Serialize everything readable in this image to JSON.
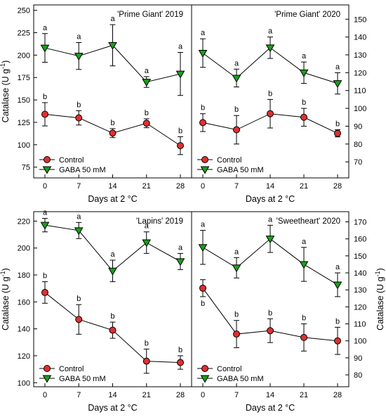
{
  "figure": {
    "xlabel": "Days at 2 °C",
    "ylabel": "Catalase (U g",
    "ylabel_sup": "-1",
    "ylabel_close": ")",
    "legend_location": "lower-left"
  },
  "chart_data": [
    {
      "type": "line",
      "title": "'Prime Giant' 2019",
      "x": [
        0,
        7,
        14,
        21,
        28
      ],
      "xlabel": "Days at 2 °C",
      "ylabel": "Catalase (U g-1)",
      "ylim": [
        63,
        256
      ],
      "yticks": [
        75,
        100,
        125,
        150,
        175,
        200,
        225,
        250
      ],
      "y_axis_side": "left",
      "series": [
        {
          "name": "Control",
          "marker": "circle",
          "color": "#e03030",
          "values": [
            134,
            130,
            113,
            124,
            99
          ],
          "errors": [
            13,
            8,
            5,
            5,
            10
          ],
          "letters": [
            "b",
            "b",
            "b",
            "b",
            "b"
          ]
        },
        {
          "name": "GABA  50 mM",
          "marker": "triangle-down",
          "color": "#1aa01a",
          "values": [
            208,
            199,
            211,
            170,
            179
          ],
          "errors": [
            16,
            15,
            23,
            6,
            24
          ],
          "letters": [
            "a",
            "a",
            "a",
            "a",
            "a"
          ]
        }
      ]
    },
    {
      "type": "line",
      "title": "'Prime Giant' 2020",
      "x": [
        0,
        7,
        14,
        21,
        28
      ],
      "xlabel": "Days at 2 °C",
      "ylabel": "",
      "ylim": [
        61,
        158
      ],
      "yticks": [
        70,
        80,
        90,
        100,
        110,
        120,
        130,
        140,
        150
      ],
      "y_axis_side": "right",
      "series": [
        {
          "name": "Control",
          "marker": "circle",
          "color": "#e03030",
          "values": [
            92,
            88,
            97,
            95,
            86
          ],
          "errors": [
            5,
            8,
            8,
            5,
            2
          ],
          "letters": [
            "b",
            "b",
            "b",
            "b",
            "b"
          ]
        },
        {
          "name": "GABA  50 mM",
          "marker": "triangle-down",
          "color": "#1aa01a",
          "values": [
            131,
            117,
            134,
            120,
            114
          ],
          "errors": [
            8,
            5,
            6,
            6,
            6
          ],
          "letters": [
            "a",
            "a",
            "a",
            "a",
            "a"
          ]
        }
      ]
    },
    {
      "type": "line",
      "title": "'Lapins' 2019",
      "x": [
        0,
        7,
        14,
        21,
        28
      ],
      "xlabel": "Days at 2 °C",
      "ylabel": "Catalase (U g-1)",
      "ylim": [
        97,
        227
      ],
      "yticks": [
        100,
        120,
        140,
        160,
        180,
        200,
        220
      ],
      "y_axis_side": "left",
      "series": [
        {
          "name": "Control",
          "marker": "circle",
          "color": "#e03030",
          "values": [
            167,
            147,
            139,
            116,
            115
          ],
          "errors": [
            8,
            11,
            6,
            9,
            5
          ],
          "letters": [
            "b",
            "b",
            "b",
            "b",
            "b"
          ]
        },
        {
          "name": "GABA 50 mM",
          "marker": "triangle-down",
          "color": "#1aa01a",
          "values": [
            217,
            213,
            183,
            204,
            190
          ],
          "errors": [
            5,
            6,
            8,
            8,
            6
          ],
          "letters": [
            "a",
            "a",
            "a",
            "a",
            "a"
          ]
        }
      ]
    },
    {
      "type": "line",
      "title": "'Sweetheart' 2020",
      "x": [
        0,
        7,
        14,
        21,
        28
      ],
      "xlabel": "Days at 2 °C",
      "ylabel": "Catalase (U g-1)",
      "ylim": [
        73,
        176
      ],
      "yticks": [
        80,
        90,
        100,
        110,
        120,
        130,
        140,
        150,
        160,
        170
      ],
      "y_axis_side": "right",
      "series": [
        {
          "name": "Control",
          "marker": "circle",
          "color": "#e03030",
          "values": [
            131,
            104,
            106,
            102,
            100
          ],
          "errors": [
            5,
            8,
            7,
            8,
            8
          ],
          "letters": [
            "b",
            "b",
            "b",
            "b",
            "b"
          ]
        },
        {
          "name": "GABA 50 mM",
          "marker": "triangle-down",
          "color": "#1aa01a",
          "values": [
            155,
            143,
            160,
            145,
            133
          ],
          "errors": [
            10,
            6,
            8,
            10,
            7
          ],
          "letters": [
            "a",
            "a",
            "a",
            "a",
            "a"
          ]
        }
      ]
    }
  ]
}
